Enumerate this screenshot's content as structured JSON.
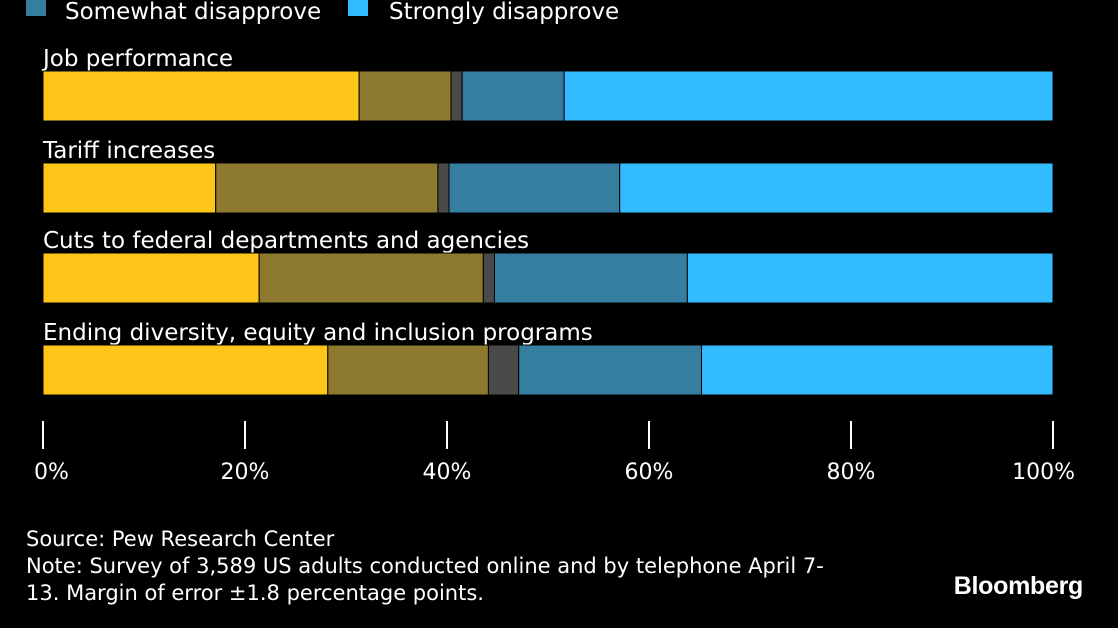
{
  "chart_data": {
    "type": "bar",
    "orientation": "horizontal",
    "stacked": true,
    "legend": {
      "placement": "top",
      "visible_entries": [
        "Somewhat disapprove",
        "Strongly disapprove"
      ]
    },
    "categories": [
      "Job performance",
      "Tariff increases",
      "Cuts to federal departments and agencies",
      "Ending diversity, equity and inclusion programs"
    ],
    "series": [
      {
        "name": "",
        "color": "#ffc61a",
        "values": [
          31.3,
          17.1,
          21.4,
          28.2
        ]
      },
      {
        "name": "",
        "color": "#8e7a2e",
        "values": [
          9.1,
          22.0,
          22.2,
          15.9
        ]
      },
      {
        "name": "",
        "color": "#4a4a4a",
        "values": [
          1.1,
          1.1,
          1.1,
          3.0
        ]
      },
      {
        "name": "Somewhat disapprove",
        "color": "#367ea0",
        "values": [
          10.1,
          16.9,
          19.1,
          18.1
        ]
      },
      {
        "name": "Strongly disapprove",
        "color": "#33bbff",
        "values": [
          48.4,
          42.9,
          36.2,
          34.8
        ]
      }
    ],
    "xlim": [
      0,
      100
    ],
    "x_ticks": [
      "0%",
      "20%",
      "40%",
      "60%",
      "80%",
      "100%"
    ],
    "grid": false
  },
  "footer": {
    "source": "Source: Pew Research Center",
    "note_line1": "Note: Survey of 3,589 US adults conducted online and by telephone April 7-",
    "note_line2": "13. Margin of error ±1.8 percentage points."
  },
  "logo": "Bloomberg"
}
